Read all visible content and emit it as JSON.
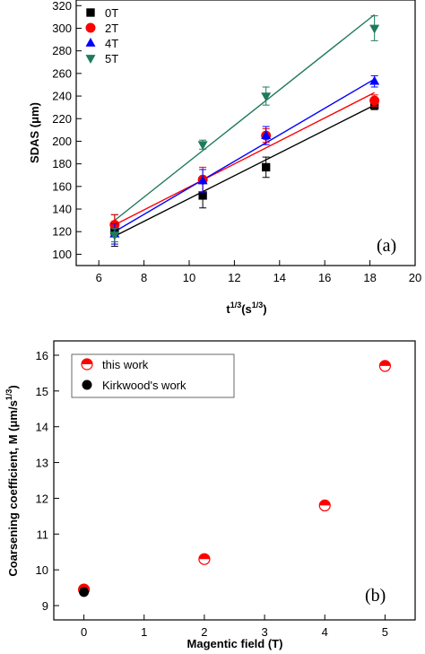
{
  "chart_data": [
    {
      "type": "scatter",
      "panel_label": "(a)",
      "xlabel_main": "t",
      "xlabel_sup": "1/3",
      "xlabel_unit": "(s",
      "xlabel_unit_sup": "1/3",
      "xlabel_close": ")",
      "ylabel": "SDAS (μm)",
      "xlim": [
        5,
        20
      ],
      "ylim": [
        90,
        325
      ],
      "xticks": [
        6,
        8,
        10,
        12,
        14,
        16,
        18,
        20
      ],
      "yticks": [
        100,
        120,
        140,
        160,
        180,
        200,
        220,
        240,
        260,
        280,
        300,
        320
      ],
      "legend_position": "top-left",
      "series": [
        {
          "name": "0T",
          "color": "#000000",
          "marker": "square",
          "x": [
            6.7,
            10.6,
            13.4,
            18.2
          ],
          "y": [
            121,
            152,
            177,
            232
          ],
          "err": [
            14,
            11,
            9,
            4
          ],
          "fit": [
            [
              6.7,
              116
            ],
            [
              18.2,
              232
            ]
          ]
        },
        {
          "name": "2T",
          "color": "#ff0000",
          "marker": "circle",
          "x": [
            6.7,
            10.6,
            13.4,
            18.2
          ],
          "y": [
            126,
            166,
            205,
            236
          ],
          "err": [
            9,
            11,
            6,
            5
          ],
          "fit": [
            [
              6.7,
              126
            ],
            [
              18.2,
              243
            ]
          ]
        },
        {
          "name": "4T",
          "color": "#0000ff",
          "marker": "triangle-up",
          "x": [
            6.7,
            10.6,
            13.4,
            18.2
          ],
          "y": [
            118,
            165,
            205,
            253
          ],
          "err": [
            9,
            10,
            8,
            5
          ],
          "fit": [
            [
              6.7,
              120
            ],
            [
              18.2,
              255
            ]
          ]
        },
        {
          "name": "5T",
          "color": "#1f7a5a",
          "marker": "triangle-down",
          "x": [
            6.7,
            10.6,
            13.4,
            18.2
          ],
          "y": [
            117,
            197,
            240,
            300
          ],
          "err": [
            6,
            4,
            8,
            11
          ],
          "fit": [
            [
              6.7,
              130
            ],
            [
              18.2,
              312
            ]
          ]
        }
      ]
    },
    {
      "type": "scatter",
      "panel_label": "(b)",
      "xlabel": "Magentic field (T)",
      "ylabel_main": "Coarsening coefficient, M (μm/s",
      "ylabel_sup": "1/3",
      "ylabel_close": ")",
      "xlim": [
        -0.5,
        5.5
      ],
      "ylim": [
        8.6,
        16.4
      ],
      "xticks": [
        0,
        1,
        2,
        3,
        4,
        5
      ],
      "yticks": [
        9,
        10,
        11,
        12,
        13,
        14,
        15,
        16
      ],
      "legend_position": "top-left",
      "series": [
        {
          "name": "this work",
          "marker": "half-circle",
          "color": "#ff0000",
          "x": [
            0,
            2,
            4,
            5
          ],
          "y": [
            9.45,
            10.3,
            11.8,
            15.7
          ]
        },
        {
          "name": "Kirkwood's work",
          "marker": "circle",
          "color": "#000000",
          "x": [
            0
          ],
          "y": [
            9.38
          ]
        }
      ]
    }
  ]
}
